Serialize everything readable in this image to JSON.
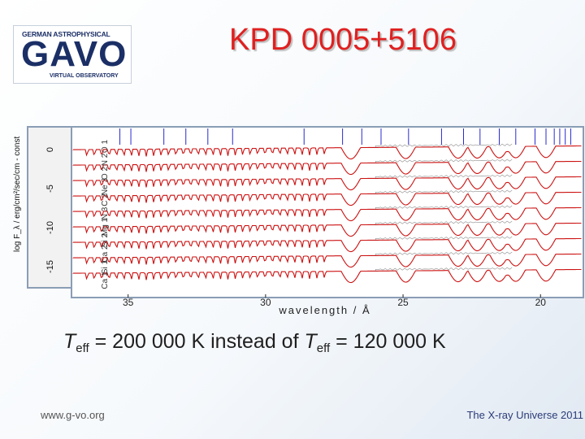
{
  "logo": {
    "top_text": "GERMAN ASTROPHYSICAL",
    "main_text": "GAVO",
    "bottom_text": "VIRTUAL OBSERVATORY"
  },
  "slide": {
    "title": "KPD 0005+5106",
    "caption": {
      "t1": "T",
      "sub1": "eff",
      "mid": " = 200 000 K instead of ",
      "t2": "T",
      "sub2": "eff",
      "end": " = 120 000 K"
    },
    "footer_left": "www.g-vo.org",
    "footer_right": "The X-ray Universe 2011"
  },
  "chart_data": {
    "type": "line",
    "xlabel": "wavelength / Å",
    "ylabel": "log F_λ / erg/cm²/sec/cm - const",
    "x_ticks": [
      35,
      30,
      25,
      20
    ],
    "y_ticks": [
      0,
      -5,
      -10,
      -15
    ],
    "series_labels": [
      "O 1",
      "N 2",
      "O 2",
      "Ne 3",
      "C 2",
      "N 3",
      "Mg 1",
      "Si 2",
      "Ca 2",
      "Si 1",
      "Ca 1"
    ],
    "colors": {
      "model": "#cc1111",
      "compare": "#444444"
    }
  }
}
